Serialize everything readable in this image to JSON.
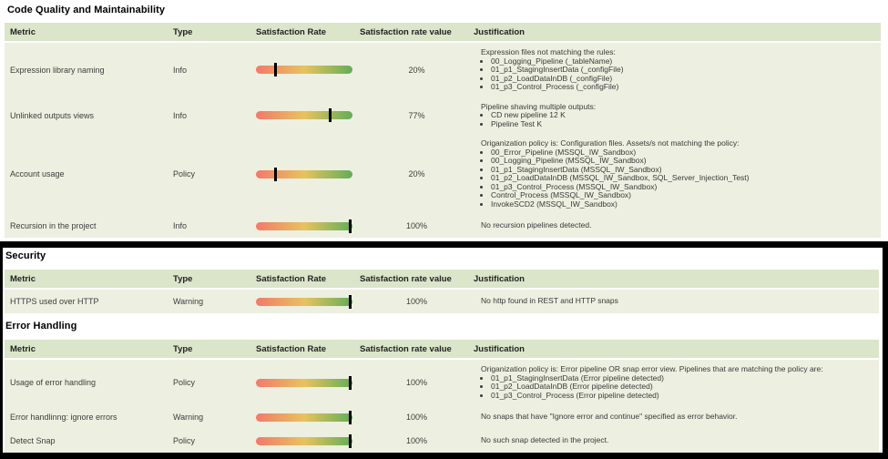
{
  "colors": {
    "header_bg": "#dbe5ca",
    "row_bg": "#edefe0",
    "bar_red": "#f2796b",
    "bar_mid": "#e8c25f",
    "bar_green": "#62ae58",
    "marker": "#000000",
    "box_border": "#000000"
  },
  "sections": [
    {
      "title": "Code Quality and Maintainability",
      "boxed": false,
      "headers": {
        "metric": "Metric",
        "type": "Type",
        "rate": "Satisfaction Rate",
        "value": "Satisfaction rate value",
        "justification": "Justification"
      },
      "rows": [
        {
          "metric": "Expression library naming",
          "type": "Info",
          "percent": 20,
          "value_label": "20%",
          "justification_intro": "Expression files not matching the rules:",
          "items": [
            "00_Logging_Pipeline (_tableName)",
            "01_p1_StagingInsertData (_configFile)",
            "01_p2_LoadDataInDB (_configFile)",
            "01_p3_Control_Process (_configFile)"
          ]
        },
        {
          "metric": "Unlinked outputs views",
          "type": "Info",
          "percent": 77,
          "value_label": "77%",
          "justification_intro": "Pipeline shaving multiple outputs:",
          "items": [
            "CD new pipeline 12 K",
            "Pipeline Test K"
          ]
        },
        {
          "metric": "Account usage",
          "type": "Policy",
          "percent": 20,
          "value_label": "20%",
          "justification_intro": "Origanization policy is: Configuration files. Assets/s not matching the policy:",
          "items": [
            "00_Error_Pipeline (MSSQL_IW_Sandbox)",
            "00_Logging_Pipeline (MSSQL_IW_Sandbox)",
            "01_p1_StagingInsertData (MSSQL_IW_Sandbox)",
            "01_p2_LoadDataInDB (MSSQL_IW_Sandbox, SQL_Server_Injection_Test)",
            "01_p3_Control_Process (MSSQL_IW_Sandbox)",
            "Control_Process (MSSQL_IW_Sandbox)",
            "InvokeSCD2 (MSSQL_IW_Sandbox)"
          ]
        },
        {
          "metric": "Recursion in the project",
          "type": "Info",
          "percent": 100,
          "value_label": "100%",
          "justification_intro": "No recursion pipelines detected.",
          "items": []
        }
      ]
    },
    {
      "title": "Security",
      "boxed": true,
      "headers": {
        "metric": "Metric",
        "type": "Type",
        "rate": "Satisfaction Rate",
        "value": "Satisfaction rate value",
        "justification": "Justification"
      },
      "rows": [
        {
          "metric": "HTTPS used over HTTP",
          "type": "Warning",
          "percent": 100,
          "value_label": "100%",
          "justification_intro": "No http found in REST and HTTP snaps",
          "items": []
        }
      ]
    },
    {
      "title": "Error Handling",
      "boxed": true,
      "headers": {
        "metric": "Metric",
        "type": "Type",
        "rate": "Satisfaction Rate",
        "value": "Satisfaction rate value",
        "justification": "Justification"
      },
      "rows": [
        {
          "metric": "Usage of error handling",
          "type": "Policy",
          "percent": 100,
          "value_label": "100%",
          "justification_intro": "Origanization policy is: Error pipeline OR snap error view. Pipelines that are matching the policy are:",
          "items": [
            "01_p1_StagingInsertData (Error pipeline detected)",
            "01_p2_LoadDataInDB (Error pipeline detected)",
            "01_p3_Control_Process (Error pipeline detected)"
          ]
        },
        {
          "metric": "Error handlinng: ignore errors",
          "type": "Warning",
          "percent": 100,
          "value_label": "100%",
          "justification_intro": "No snaps that have \"Ignore error and continue\" specified as error behavior.",
          "items": []
        },
        {
          "metric": "Detect Snap",
          "type": "Policy",
          "percent": 100,
          "value_label": "100%",
          "justification_intro": "No such snap detected in the project.",
          "items": []
        }
      ]
    }
  ]
}
